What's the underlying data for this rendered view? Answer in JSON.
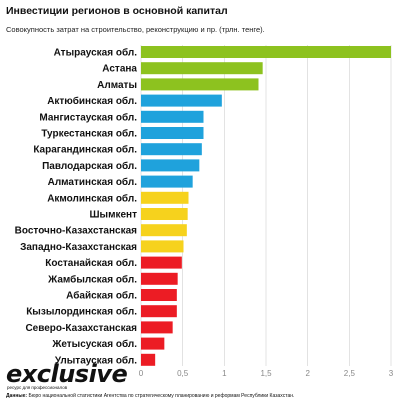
{
  "header": {
    "title": "Инвестиции регионов в основной капитал",
    "subtitle": "Совокупность затрат на строительство, реконструкцию и пр. (трлн. тенге)."
  },
  "brand": {
    "logo": "exclusive",
    "tagline": "ресурс для профессионалов"
  },
  "footer": {
    "source_label": "Данные:",
    "source_text": "Бюро национальной статистики Агентства по стратегическому планированию и реформам Республики Казахстан."
  },
  "colors": {
    "green": "#8dc21f",
    "blue": "#1fa2dc",
    "yellow": "#f6d21d",
    "red": "#ec1c24",
    "grid": "#d0d0d0"
  },
  "chart_data": {
    "type": "bar",
    "orientation": "horizontal",
    "title": "Инвестиции регионов в основной капитал",
    "subtitle": "Совокупность затрат на строительство, реконструкцию и пр. (трлн. тенге).",
    "xlim": [
      0,
      3
    ],
    "ticks": [
      "0",
      "0,5",
      "1",
      "1,5",
      "2",
      "2,5",
      "3"
    ],
    "grid": true,
    "categories": [
      "Атырауская обл.",
      "Астана",
      "Алматы",
      "Актюбинская обл.",
      "Мангистауская обл.",
      "Туркестанская обл.",
      "Карагандинская обл.",
      "Павлодарская обл.",
      "Алматинская обл.",
      "Акмолинская обл.",
      "Шымкент",
      "Восточно-Казахстанская",
      "Западно-Казахстанская",
      "Костанайская обл.",
      "Жамбылская обл.",
      "Абайская обл.",
      "Кызылординская обл.",
      "Северо-Казахстанская",
      "Жетысуская обл.",
      "Улытауская обл."
    ],
    "values": [
      3.0,
      1.46,
      1.41,
      0.97,
      0.75,
      0.75,
      0.73,
      0.7,
      0.62,
      0.57,
      0.56,
      0.55,
      0.51,
      0.49,
      0.44,
      0.43,
      0.43,
      0.38,
      0.28,
      0.17
    ],
    "bar_colors": [
      "green",
      "green",
      "green",
      "blue",
      "blue",
      "blue",
      "blue",
      "blue",
      "blue",
      "yellow",
      "yellow",
      "yellow",
      "yellow",
      "red",
      "red",
      "red",
      "red",
      "red",
      "red",
      "red"
    ]
  }
}
